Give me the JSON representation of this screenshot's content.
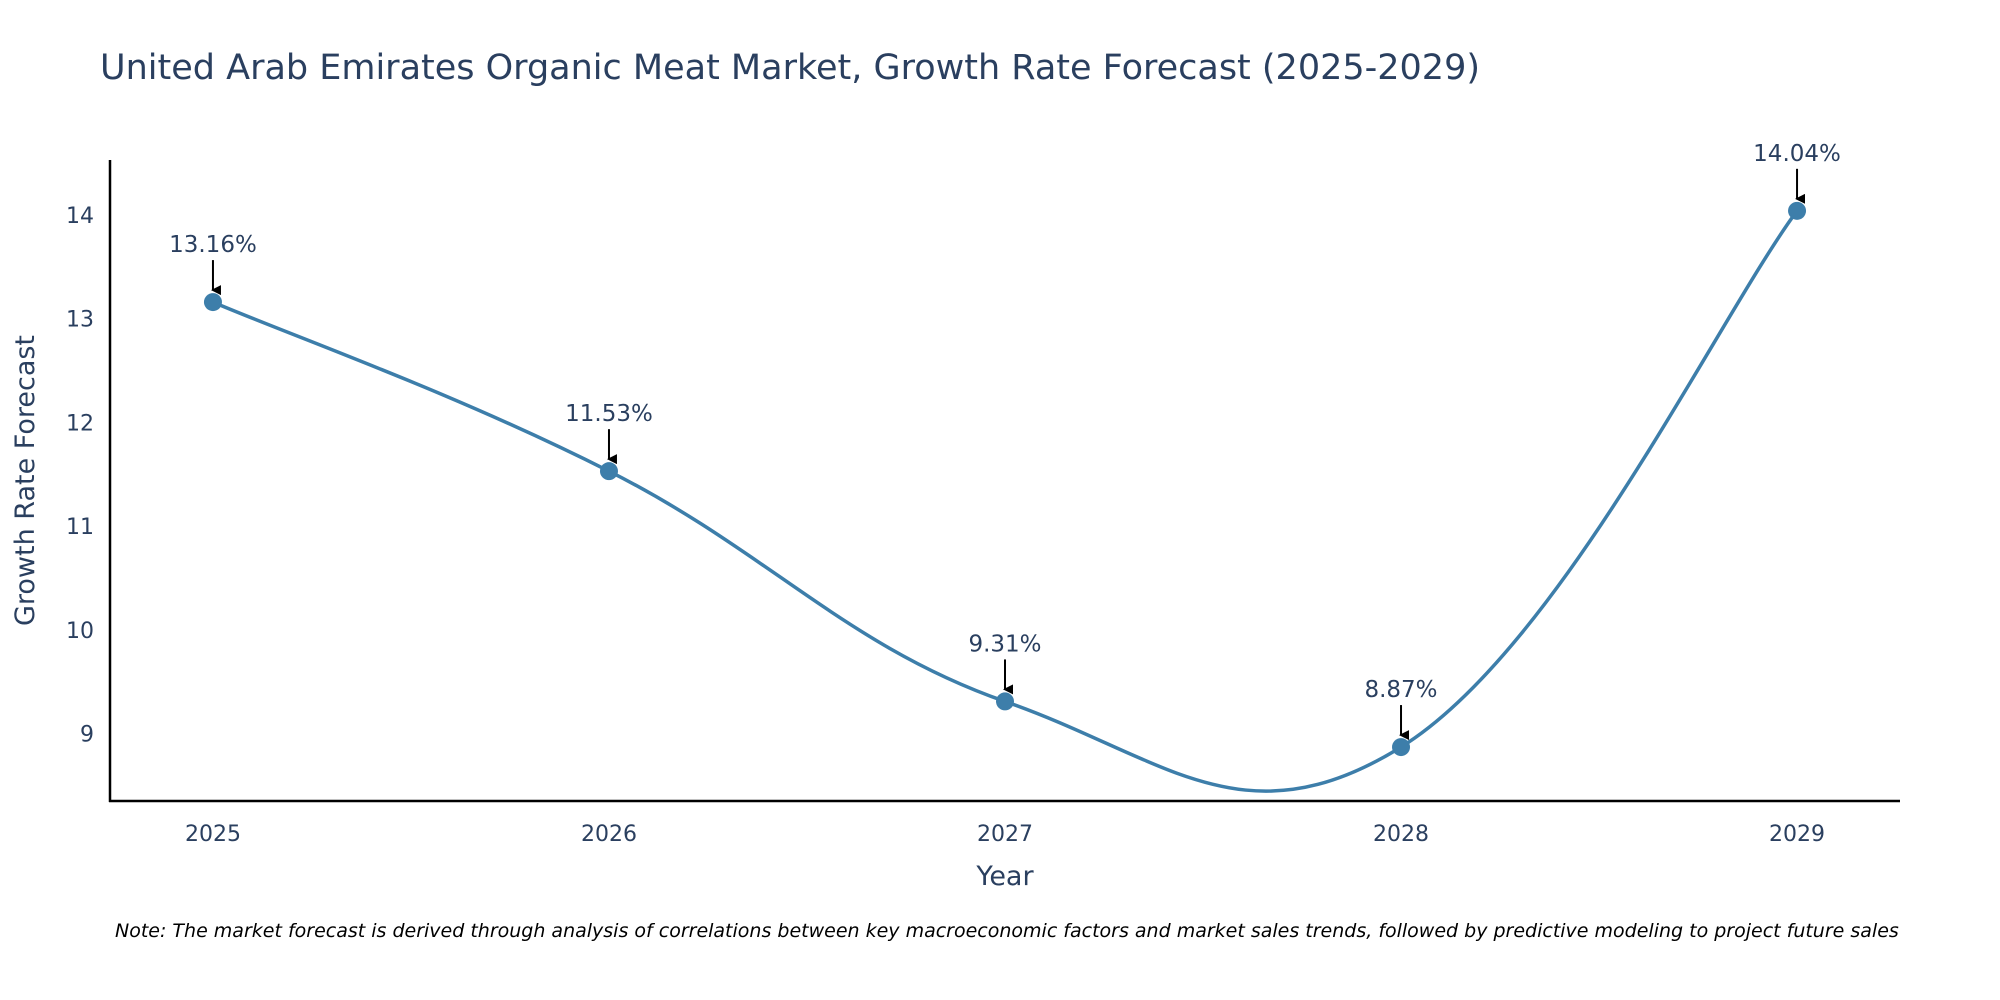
{
  "chart_data": {
    "type": "line",
    "title": "United Arab Emirates Organic Meat Market, Growth Rate Forecast (2025-2029)",
    "xlabel": "Year",
    "ylabel": "Growth Rate Forecast",
    "categories": [
      "2025",
      "2026",
      "2027",
      "2028",
      "2029"
    ],
    "x": [
      2025,
      2026,
      2027,
      2028,
      2029
    ],
    "values": [
      13.16,
      11.53,
      9.31,
      8.87,
      14.04
    ],
    "data_labels": [
      "13.16%",
      "11.53%",
      "9.31%",
      "8.87%",
      "14.04%"
    ],
    "yticks": [
      9,
      10,
      11,
      12,
      13,
      14
    ],
    "ylim": [
      8.35,
      14.53
    ],
    "xlim": [
      2024.74,
      2029.26
    ],
    "line_shape": "spline",
    "grid": false,
    "legend": "none",
    "line_color": "#3d7eaa",
    "marker_color": "#3d7eaa",
    "text_color": "#2a3f5f",
    "axis_color": "#000000"
  },
  "note": "Note: The market forecast is derived through analysis of correlations between key macroeconomic factors and market sales trends, followed by predictive modeling to project future sales"
}
